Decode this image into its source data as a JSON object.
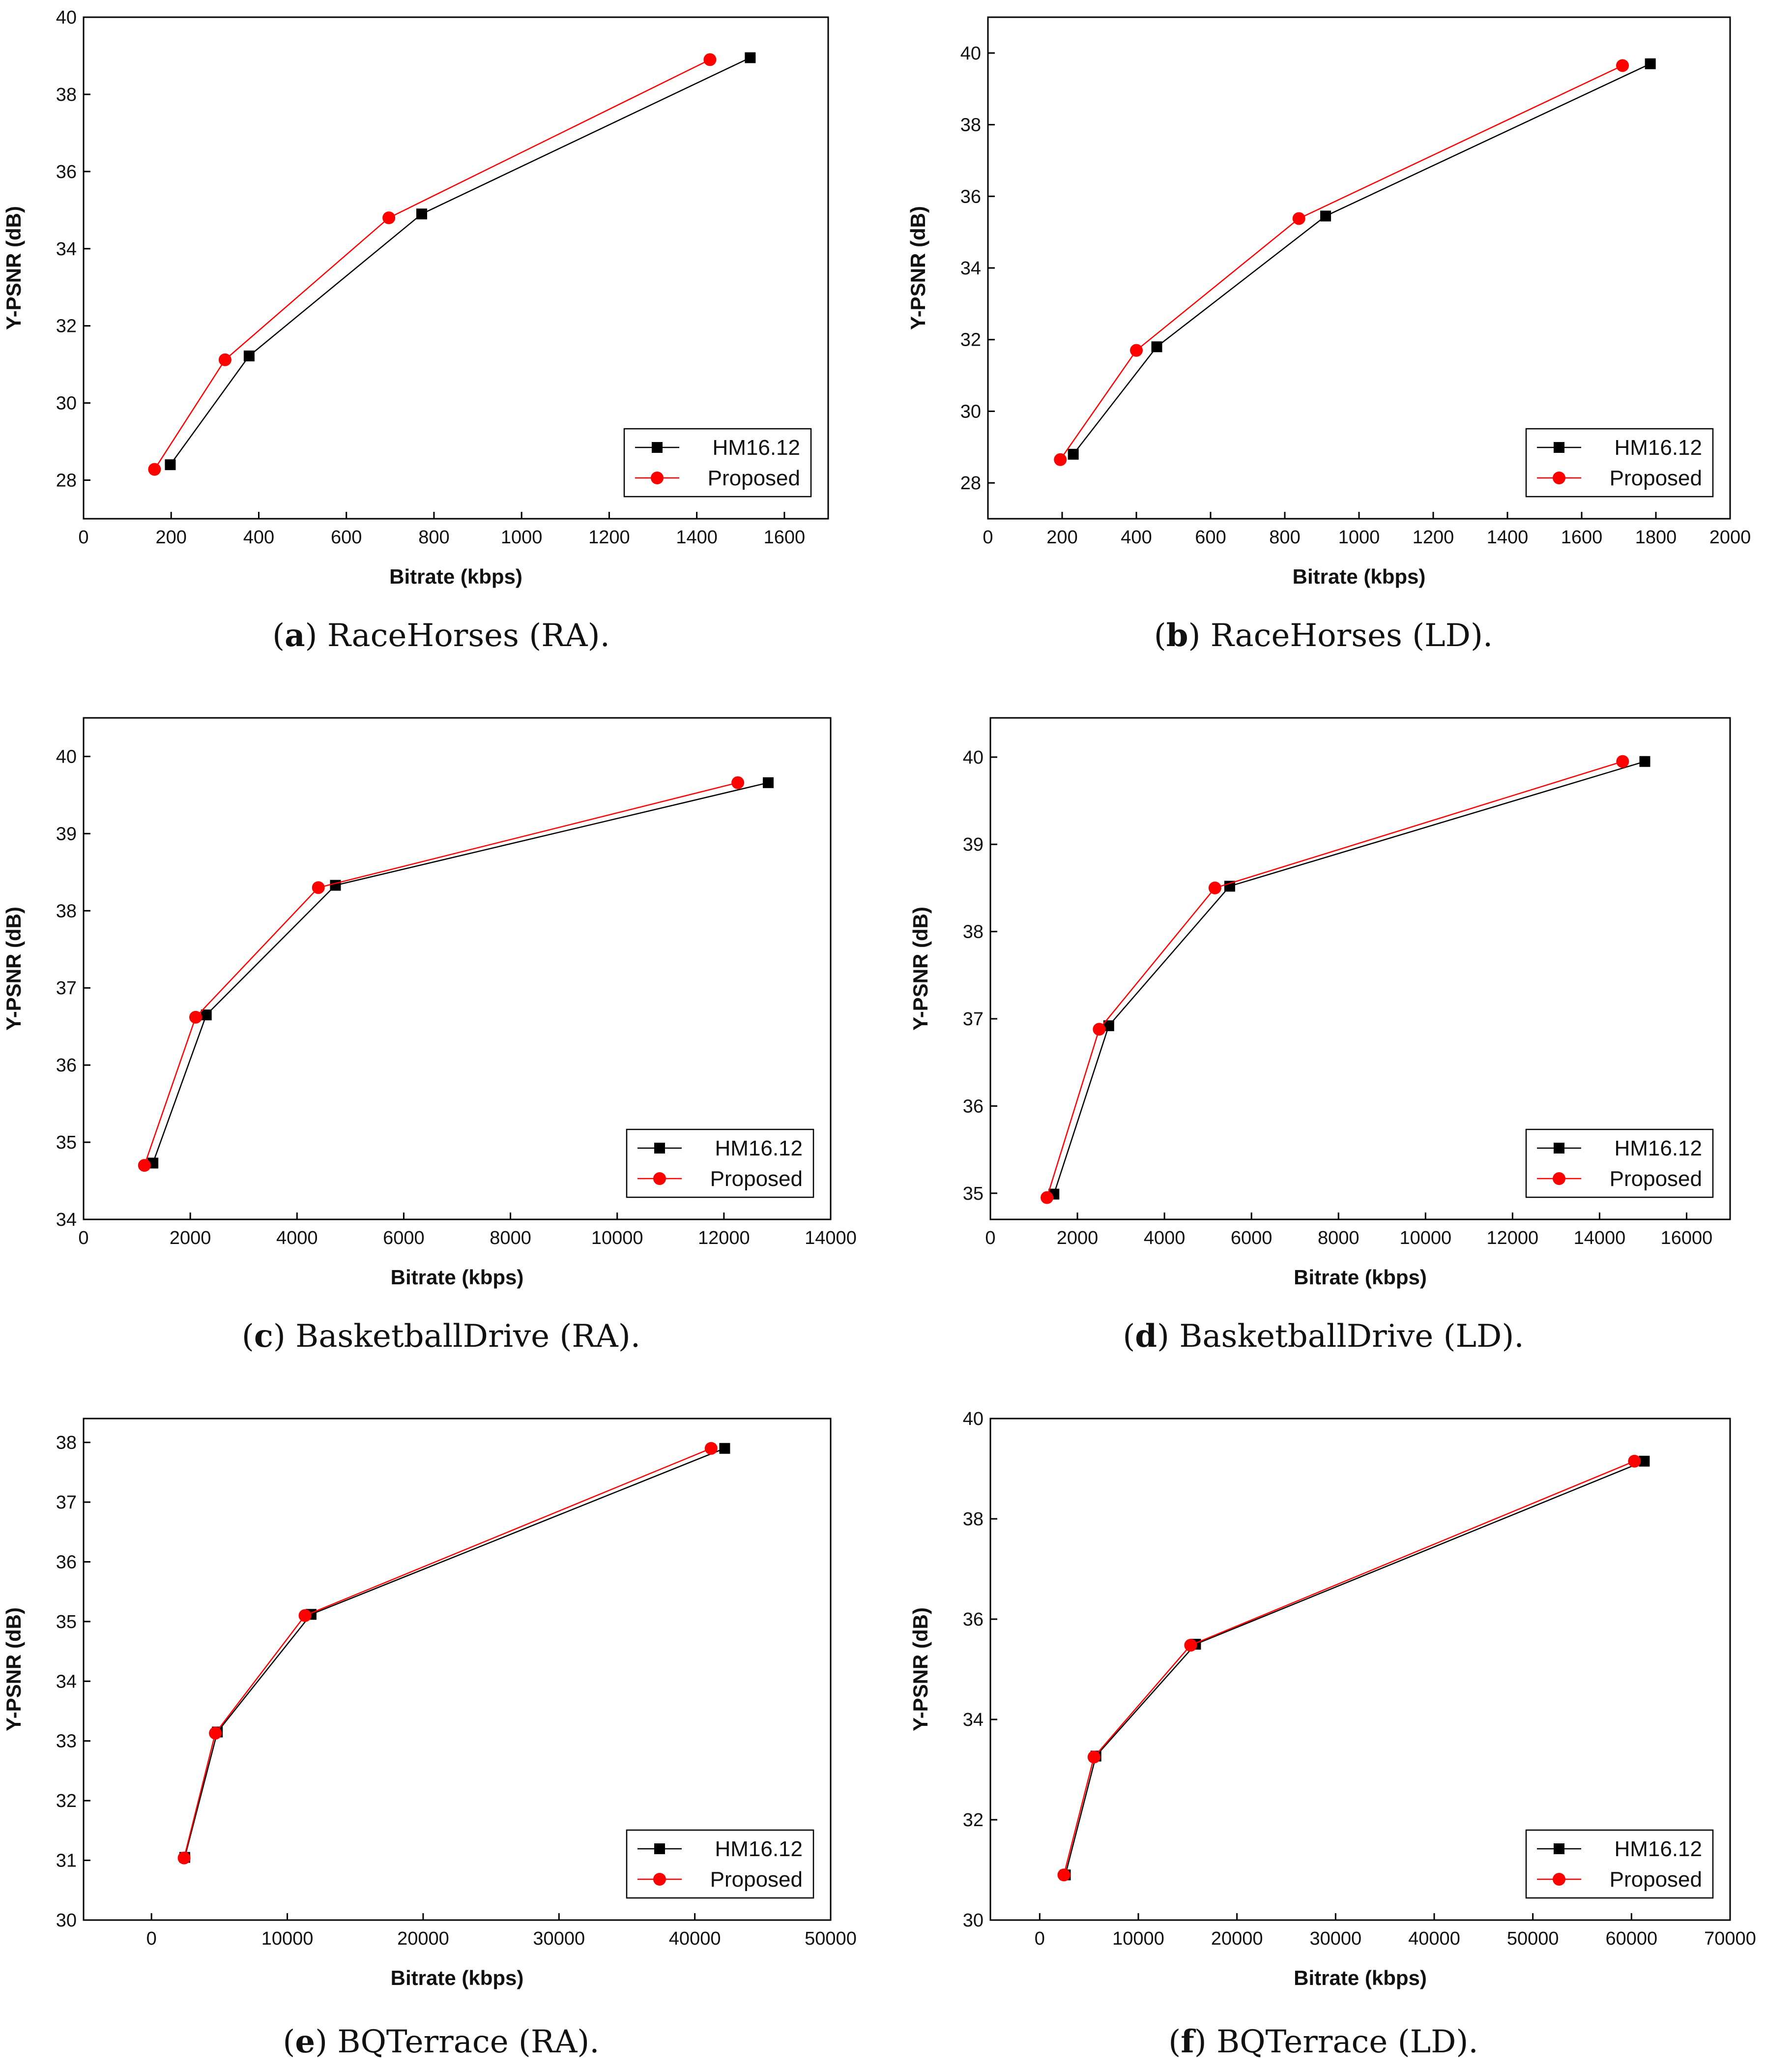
{
  "figure": {
    "colors": {
      "hm": "#000000",
      "proposed": "#ff0000",
      "axis": "#000000"
    }
  },
  "chart_data": [
    {
      "id": "a",
      "type": "line",
      "caption_letter": "a",
      "caption_text": " RaceHorses (RA).",
      "xlabel": "Bitrate (kbps)",
      "ylabel": "Y-PSNR (dB)",
      "xlim": [
        0,
        1700
      ],
      "ylim": [
        27,
        40
      ],
      "xticks": [
        0,
        200,
        400,
        600,
        800,
        1000,
        1200,
        1400,
        1600
      ],
      "yticks": [
        28,
        30,
        32,
        34,
        36,
        38,
        40
      ],
      "legend_position": "bottom-right",
      "series": [
        {
          "name": "HM16.12",
          "marker": "square",
          "x": [
            198,
            378,
            772,
            1522
          ],
          "y": [
            28.4,
            31.22,
            34.9,
            38.95
          ]
        },
        {
          "name": "Proposed",
          "marker": "circle",
          "x": [
            162,
            323,
            697,
            1430
          ],
          "y": [
            28.28,
            31.12,
            34.8,
            38.9
          ]
        }
      ]
    },
    {
      "id": "b",
      "type": "line",
      "caption_letter": "b",
      "caption_text": " RaceHorses (LD).",
      "xlabel": "Bitrate (kbps)",
      "ylabel": "Y-PSNR (dB)",
      "xlim": [
        0,
        2000
      ],
      "ylim": [
        27,
        41
      ],
      "xticks": [
        0,
        200,
        400,
        600,
        800,
        1000,
        1200,
        1400,
        1600,
        1800,
        2000
      ],
      "yticks": [
        28,
        30,
        32,
        34,
        36,
        38,
        40
      ],
      "legend_position": "bottom-right",
      "series": [
        {
          "name": "HM16.12",
          "marker": "square",
          "x": [
            230,
            455,
            910,
            1785
          ],
          "y": [
            28.8,
            31.8,
            35.45,
            39.7
          ]
        },
        {
          "name": "Proposed",
          "marker": "circle",
          "x": [
            195,
            400,
            838,
            1710
          ],
          "y": [
            28.65,
            31.7,
            35.38,
            39.65
          ]
        }
      ]
    },
    {
      "id": "c",
      "type": "line",
      "caption_letter": "c",
      "caption_text": " BasketballDrive (RA).",
      "xlabel": "Bitrate (kbps)",
      "ylabel": "Y-PSNR (dB)",
      "xlim": [
        0,
        14000
      ],
      "ylim": [
        34,
        40.5
      ],
      "xticks": [
        0,
        2000,
        4000,
        6000,
        8000,
        10000,
        12000,
        14000
      ],
      "yticks": [
        34,
        35,
        36,
        37,
        38,
        39,
        40
      ],
      "legend_position": "bottom-right",
      "series": [
        {
          "name": "HM16.12",
          "marker": "square",
          "x": [
            1300,
            2300,
            4720,
            12830
          ],
          "y": [
            34.73,
            36.65,
            38.33,
            39.66
          ]
        },
        {
          "name": "Proposed",
          "marker": "circle",
          "x": [
            1140,
            2100,
            4400,
            12260
          ],
          "y": [
            34.7,
            36.62,
            38.3,
            39.66
          ]
        }
      ]
    },
    {
      "id": "d",
      "type": "line",
      "caption_letter": "d",
      "caption_text": " BasketballDrive (LD).",
      "xlabel": "Bitrate (kbps)",
      "ylabel": "Y-PSNR (dB)",
      "xlim": [
        0,
        17000
      ],
      "ylim": [
        34.7,
        40.45
      ],
      "xticks": [
        0,
        2000,
        4000,
        6000,
        8000,
        10000,
        12000,
        14000,
        16000
      ],
      "yticks": [
        35,
        36,
        37,
        38,
        39,
        40
      ],
      "legend_position": "bottom-right",
      "series": [
        {
          "name": "HM16.12",
          "marker": "square",
          "x": [
            1460,
            2720,
            5500,
            15040
          ],
          "y": [
            34.99,
            36.92,
            38.52,
            39.95
          ]
        },
        {
          "name": "Proposed",
          "marker": "circle",
          "x": [
            1300,
            2500,
            5160,
            14530
          ],
          "y": [
            34.95,
            36.88,
            38.5,
            39.95
          ]
        }
      ]
    },
    {
      "id": "e",
      "type": "line",
      "caption_letter": "e",
      "caption_text": " BQTerrace (RA).",
      "xlabel": "Bitrate (kbps)",
      "ylabel": "Y-PSNR (dB)",
      "xlim": [
        -5000,
        50000
      ],
      "ylim": [
        30,
        38.4
      ],
      "xticks": [
        0,
        10000,
        20000,
        30000,
        40000,
        50000
      ],
      "yticks": [
        30,
        31,
        32,
        33,
        34,
        35,
        36,
        37,
        38
      ],
      "legend_position": "bottom-right",
      "series": [
        {
          "name": "HM16.12",
          "marker": "square",
          "x": [
            2450,
            4850,
            11750,
            42200
          ],
          "y": [
            31.05,
            33.15,
            35.12,
            37.9
          ]
        },
        {
          "name": "Proposed",
          "marker": "circle",
          "x": [
            2400,
            4700,
            11300,
            41200
          ],
          "y": [
            31.04,
            33.13,
            35.1,
            37.9
          ]
        }
      ]
    },
    {
      "id": "f",
      "type": "line",
      "caption_letter": "f",
      "caption_text": " BQTerrace (LD).",
      "xlabel": "Bitrate (kbps)",
      "ylabel": "Y-PSNR (dB)",
      "xlim": [
        -5000,
        70000
      ],
      "ylim": [
        30,
        40
      ],
      "xticks": [
        0,
        10000,
        20000,
        30000,
        40000,
        50000,
        60000,
        70000
      ],
      "yticks": [
        30,
        32,
        34,
        36,
        38,
        40
      ],
      "legend_position": "bottom-right",
      "series": [
        {
          "name": "HM16.12",
          "marker": "square",
          "x": [
            2600,
            5700,
            15800,
            61300
          ],
          "y": [
            30.9,
            33.27,
            35.5,
            39.15
          ]
        },
        {
          "name": "Proposed",
          "marker": "circle",
          "x": [
            2450,
            5500,
            15300,
            60300
          ],
          "y": [
            30.9,
            33.25,
            35.48,
            39.15
          ]
        }
      ]
    }
  ]
}
